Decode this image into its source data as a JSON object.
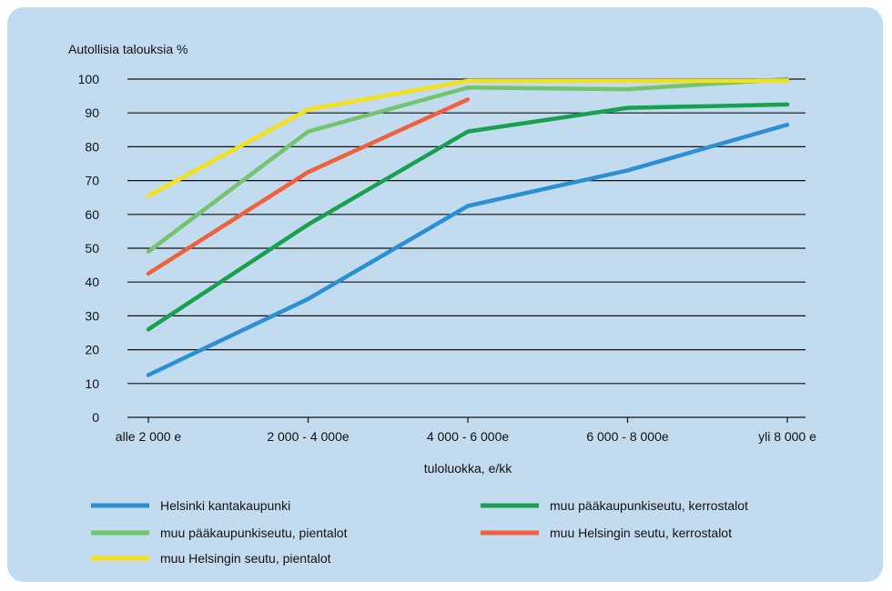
{
  "chart_data": {
    "type": "line",
    "title": "Autollisia talouksia %",
    "xlabel": "tuloluokka, e/kk",
    "ylabel": "",
    "ylim": [
      0,
      100
    ],
    "yticks": [
      0,
      10,
      20,
      30,
      40,
      50,
      60,
      70,
      80,
      90,
      100
    ],
    "categories": [
      "alle 2 000 e",
      "2 000 - 4 000e",
      "4 000 - 6 000e",
      "6 000 - 8 000e",
      "yli 8 000 e"
    ],
    "grid": "horizontal",
    "legend_position": "bottom",
    "series": [
      {
        "name": "Helsinki kantakaupunki",
        "color": "#2b8fd3",
        "values": [
          12.5,
          35,
          62.5,
          73,
          86.5
        ]
      },
      {
        "name": "muu pääkaupunkiseutu, kerrostalot",
        "color": "#16a04f",
        "values": [
          26,
          57,
          84.5,
          91.5,
          92.5
        ]
      },
      {
        "name": "muu pääkaupunkiseutu, pientalot",
        "color": "#72c46e",
        "values": [
          49,
          84.5,
          97.5,
          97,
          100
        ]
      },
      {
        "name": "muu Helsingin seutu, kerrostalot",
        "color": "#f0603c",
        "values": [
          42.5,
          72.5,
          94,
          null,
          null
        ]
      },
      {
        "name": "muu Helsingin seutu, pientalot",
        "color": "#f5e11a",
        "values": [
          65.5,
          91,
          99.5,
          99.5,
          99.5
        ]
      }
    ]
  }
}
